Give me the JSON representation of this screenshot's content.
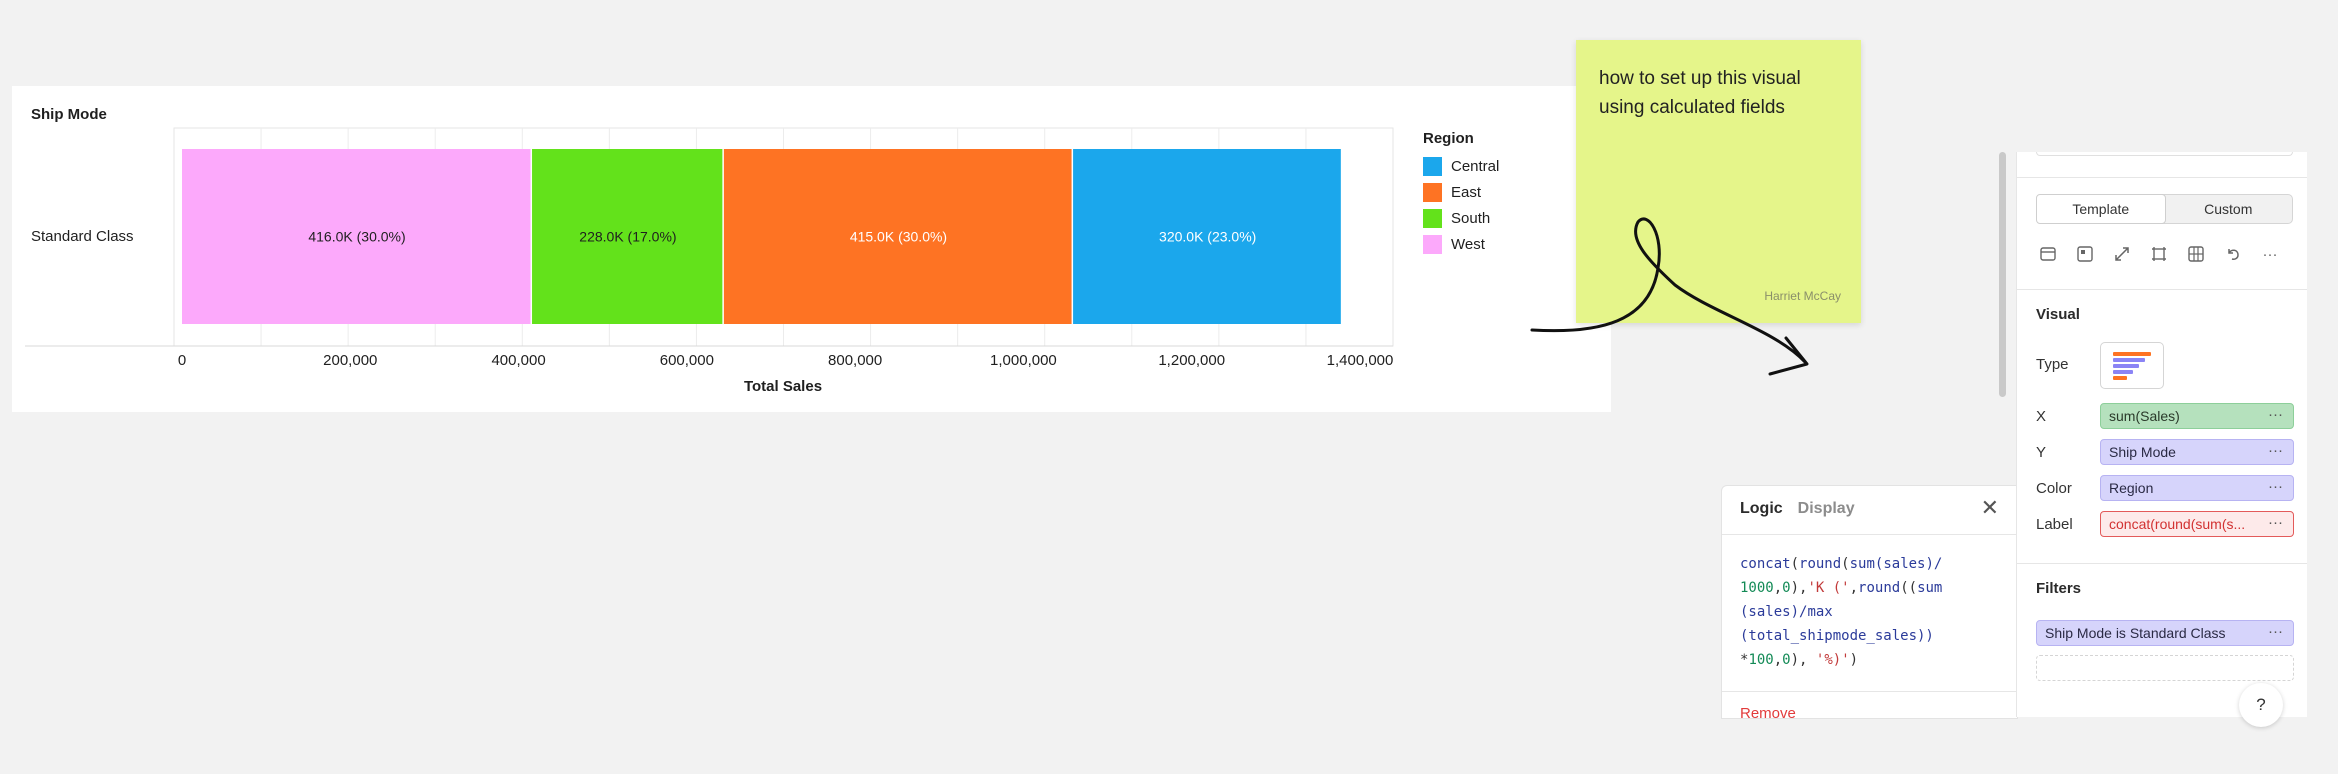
{
  "chart_data": {
    "type": "bar",
    "orientation": "horizontal",
    "stacked": true,
    "title": "Ship Mode",
    "xlabel": "Total Sales",
    "ylabel": "",
    "categories": [
      "Standard Class"
    ],
    "xlim": [
      0,
      1400000
    ],
    "xticks": [
      0,
      200000,
      400000,
      600000,
      800000,
      1000000,
      1200000,
      1400000
    ],
    "xtick_labels": [
      "0",
      "200,000",
      "400,000",
      "600,000",
      "800,000",
      "1,000,000",
      "1,200,000",
      "1,400,000"
    ],
    "series": [
      {
        "name": "West",
        "color": "#fca9fb",
        "values": [
          416000
        ],
        "label": "416.0K (30.0%)",
        "label_color": "#1f1f1f"
      },
      {
        "name": "South",
        "color": "#63e21b",
        "values": [
          228000
        ],
        "label": "228.0K (17.0%)",
        "label_color": "#1f1f1f"
      },
      {
        "name": "East",
        "color": "#fe7323",
        "values": [
          415000
        ],
        "label": "415.0K (30.0%)",
        "label_color": "#ffffff"
      },
      {
        "name": "Central",
        "color": "#1ba7ec",
        "values": [
          320000
        ],
        "label": "320.0K (23.0%)",
        "label_color": "#ffffff"
      }
    ],
    "legend": {
      "title": "Region",
      "placement": "right",
      "items": [
        {
          "name": "Central",
          "color": "#1ba7ec"
        },
        {
          "name": "East",
          "color": "#fe7323"
        },
        {
          "name": "South",
          "color": "#63e21b"
        },
        {
          "name": "West",
          "color": "#fca9fb"
        }
      ]
    },
    "grid": true
  },
  "sticky_note": {
    "text": "how to set up this visual using calculated fields",
    "author": "Harriet McCay",
    "color": "#e5f58a"
  },
  "logic_panel": {
    "tab_logic": "Logic",
    "tab_display": "Display",
    "code_lines": [
      [
        {
          "t": "concat",
          "c": "fn"
        },
        {
          "t": "(",
          "c": "p"
        },
        {
          "t": "round",
          "c": "fn"
        },
        {
          "t": "(",
          "c": "p"
        },
        {
          "t": "sum",
          "c": "fn"
        },
        {
          "t": "(sales)/",
          "c": "fn"
        }
      ],
      [
        {
          "t": "1000",
          "c": "num"
        },
        {
          "t": ",",
          "c": "p"
        },
        {
          "t": "0",
          "c": "num"
        },
        {
          "t": "),",
          "c": "p"
        },
        {
          "t": "'K ('",
          "c": "str"
        },
        {
          "t": ",",
          "c": "p"
        },
        {
          "t": "round",
          "c": "fn"
        },
        {
          "t": "((",
          "c": "p"
        },
        {
          "t": "sum",
          "c": "fn"
        }
      ],
      [
        {
          "t": "(sales)/",
          "c": "fn"
        },
        {
          "t": "max",
          "c": "fn"
        }
      ],
      [
        {
          "t": "(total_shipmode_sales))",
          "c": "fn"
        }
      ],
      [
        {
          "t": "*",
          "c": "p"
        },
        {
          "t": "100",
          "c": "num"
        },
        {
          "t": ",",
          "c": "p"
        },
        {
          "t": "0",
          "c": "num"
        },
        {
          "t": "), ",
          "c": "p"
        },
        {
          "t": "'%)'",
          "c": "str"
        },
        {
          "t": ")",
          "c": "p"
        }
      ]
    ],
    "remove_label": "Remove"
  },
  "config_panel": {
    "toggle_template": "Template",
    "toggle_custom": "Custom",
    "visual_heading": "Visual",
    "type_label": "Type",
    "x_label": "X",
    "x_value": "sum(Sales)",
    "y_label": "Y",
    "y_value": "Ship Mode",
    "color_label": "Color",
    "color_value": "Region",
    "label_label": "Label",
    "label_value": "concat(round(sum(s...",
    "filters_heading": "Filters",
    "filter_value": "Ship Mode is Standard Class",
    "more_glyph": "···",
    "help_glyph": "?"
  }
}
